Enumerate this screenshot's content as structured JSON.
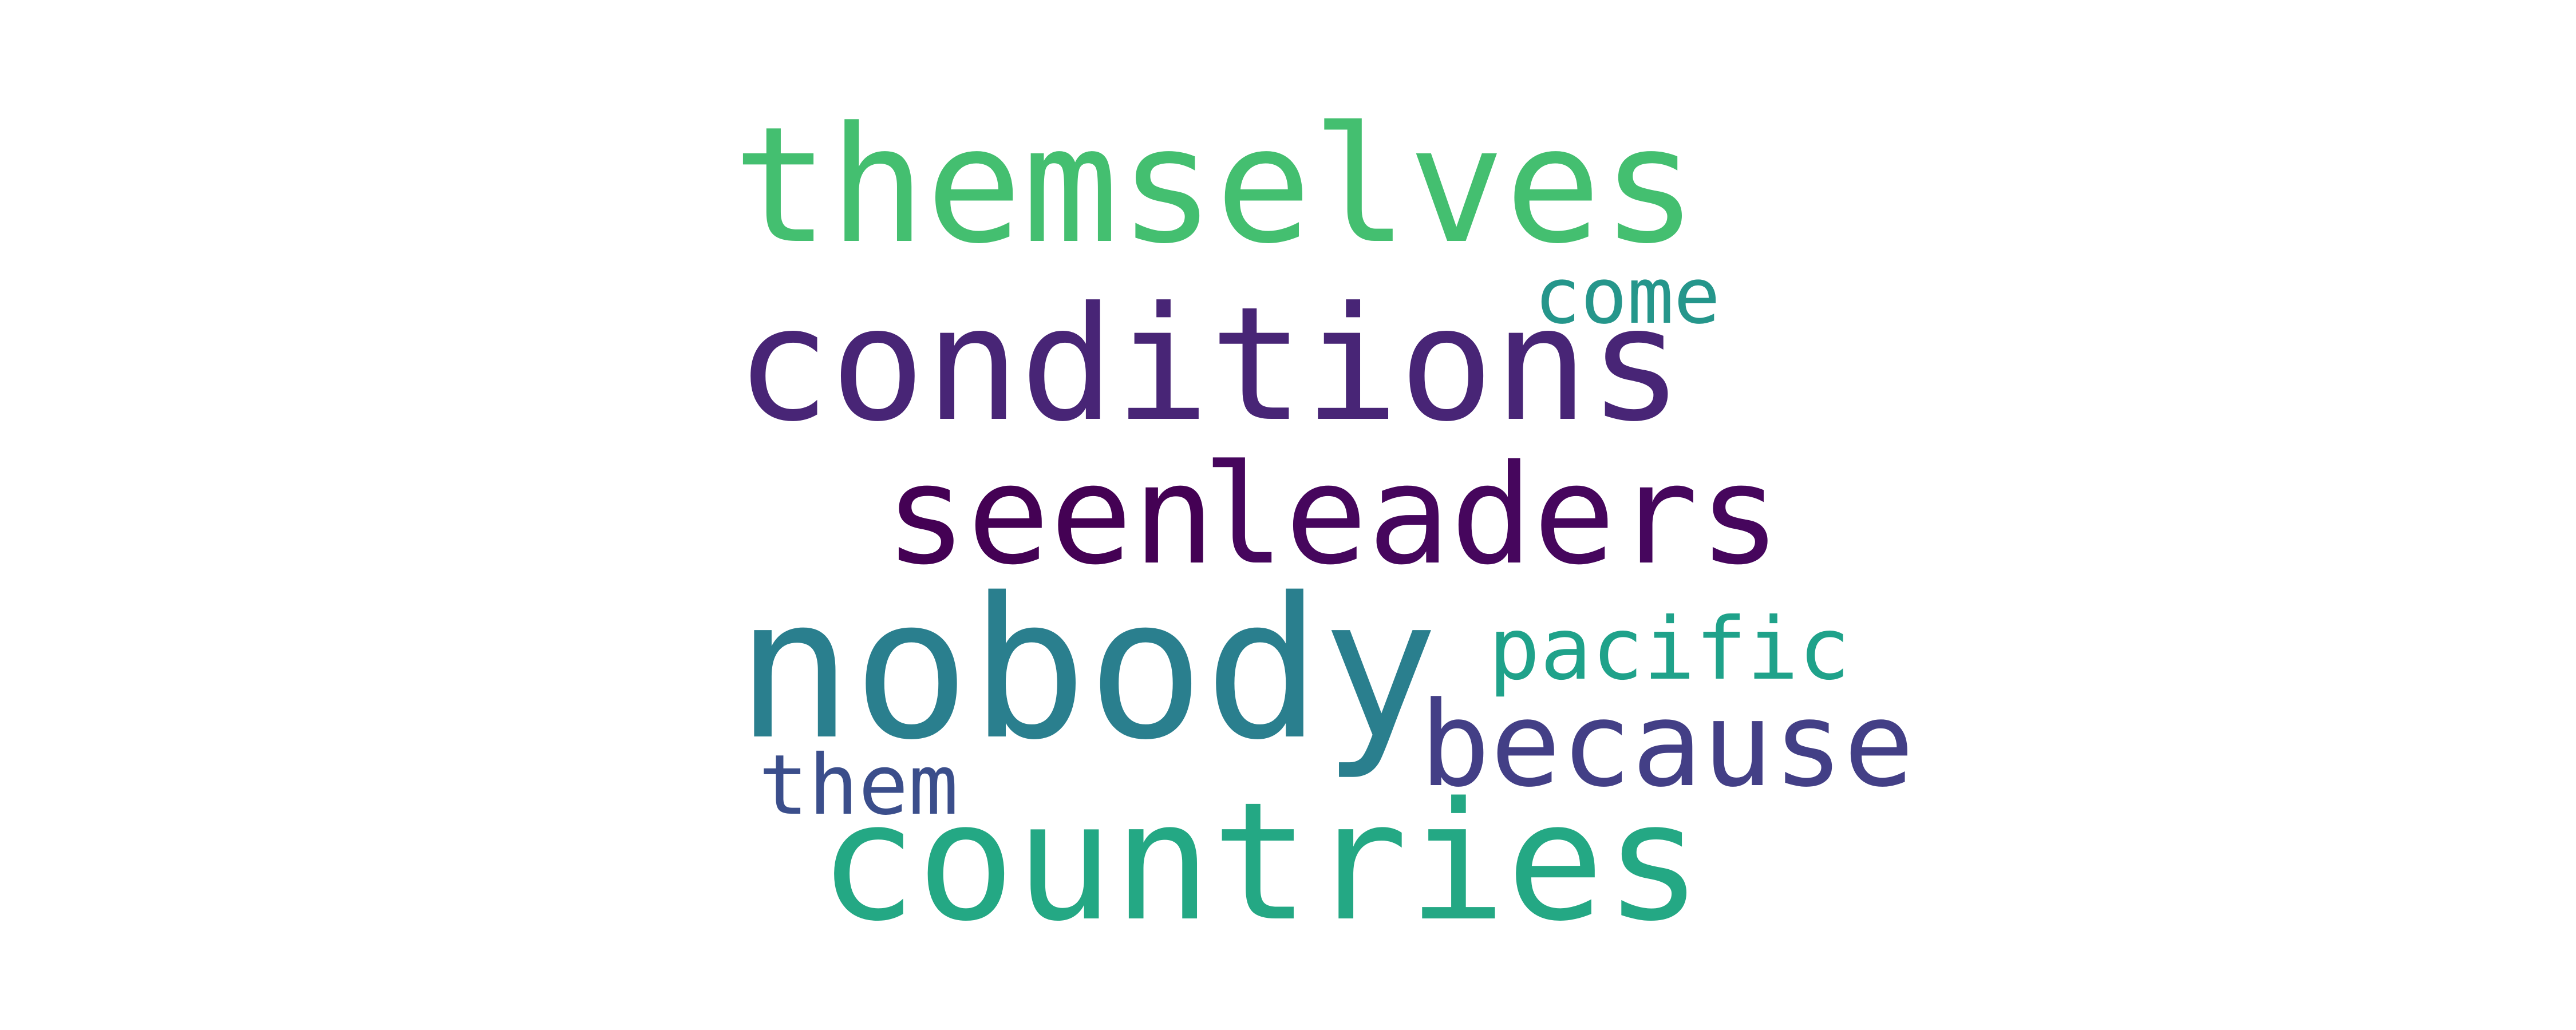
{
  "wordcloud": {
    "words": [
      {
        "key": "themselves",
        "text": "themselves",
        "color": "#44bf70"
      },
      {
        "key": "come",
        "text": "come",
        "color": "#25968b"
      },
      {
        "key": "conditions",
        "text": "conditions",
        "color": "#482576"
      },
      {
        "key": "seen",
        "text": "seen",
        "color": "#440154"
      },
      {
        "key": "leaders",
        "text": "leaders",
        "color": "#46065d"
      },
      {
        "key": "nobody",
        "text": "nobody",
        "color": "#2a7f8e"
      },
      {
        "key": "pacific",
        "text": "pacific",
        "color": "#1fa28a"
      },
      {
        "key": "because",
        "text": "because",
        "color": "#433f86"
      },
      {
        "key": "them",
        "text": "them",
        "color": "#3b4e8b"
      },
      {
        "key": "countries",
        "text": "countries",
        "color": "#24a884"
      }
    ]
  }
}
